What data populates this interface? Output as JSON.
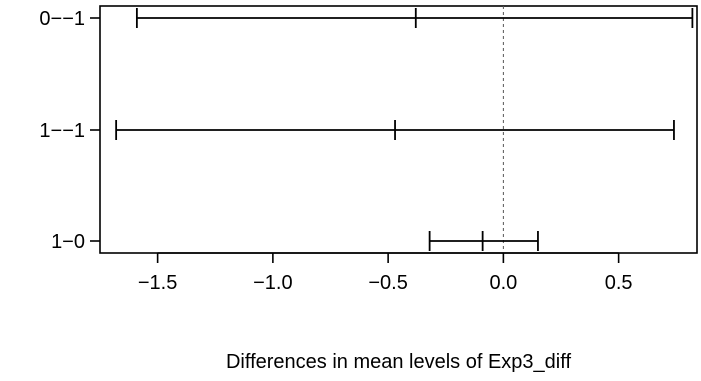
{
  "chart_data": {
    "type": "interval",
    "title": "",
    "xlabel": "Differences in mean levels of Exp3_diff",
    "ylabel": "",
    "xlim": [
      -1.75,
      0.84
    ],
    "x_ticks": [
      -1.5,
      -1.0,
      -0.5,
      0.0,
      0.5
    ],
    "x_tick_labels": [
      "−1.5",
      "−1.0",
      "−0.5",
      "0.0",
      "0.5"
    ],
    "reference_line_x": 0,
    "grid": false,
    "intervals": [
      {
        "label": "0−−1",
        "lower": -1.59,
        "estimate": -0.38,
        "upper": 0.82
      },
      {
        "label": "1−−1",
        "lower": -1.68,
        "estimate": -0.47,
        "upper": 0.74
      },
      {
        "label": "1−0",
        "lower": -0.32,
        "estimate": -0.09,
        "upper": 0.15
      }
    ],
    "colors": {
      "axis": "#000000",
      "interval": "#000000",
      "reference_line": "#555555"
    }
  }
}
